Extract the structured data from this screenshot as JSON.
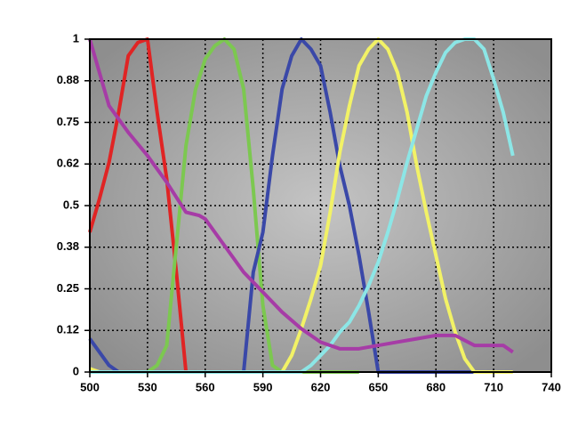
{
  "chart_data": {
    "type": "line",
    "xlim": [
      500,
      740
    ],
    "xticks": [
      500,
      530,
      560,
      590,
      620,
      650,
      680,
      710,
      740
    ],
    "ylim": [
      0,
      1
    ],
    "yticks": [
      0,
      {
        "value": 0.125,
        "label": "0.12"
      },
      0.25,
      {
        "value": 0.375,
        "label": "0.38"
      },
      0.5,
      {
        "value": 0.625,
        "label": "0.62"
      },
      0.75,
      {
        "value": 0.875,
        "label": "0.88"
      },
      1
    ],
    "grid": true,
    "series": [
      {
        "color": "#e02424",
        "x": [
          500,
          505,
          510,
          515,
          520,
          525,
          530,
          535,
          540,
          545,
          550
        ],
        "values": [
          0.42,
          0.52,
          0.63,
          0.78,
          0.95,
          0.99,
          1,
          0.78,
          0.58,
          0.3,
          0
        ]
      },
      {
        "color": "#7cc850",
        "x": [
          530,
          535,
          540,
          545,
          550,
          555,
          560,
          565,
          570,
          575,
          580,
          585,
          590,
          595,
          600,
          640
        ],
        "values": [
          0,
          0.02,
          0.08,
          0.38,
          0.68,
          0.85,
          0.94,
          0.98,
          1,
          0.97,
          0.85,
          0.55,
          0.2,
          0.02,
          0,
          0
        ]
      },
      {
        "color": "#3a48a8",
        "x": [
          500,
          505,
          510,
          515,
          520,
          580,
          585,
          590,
          595,
          600,
          605,
          610,
          615,
          620,
          625,
          630,
          635,
          640,
          645,
          650,
          700
        ],
        "values": [
          0.1,
          0.06,
          0.02,
          0,
          0,
          0,
          0.3,
          0.42,
          0.65,
          0.85,
          0.95,
          1,
          0.97,
          0.92,
          0.78,
          0.62,
          0.5,
          0.35,
          0.18,
          0,
          0
        ]
      },
      {
        "color": "#f2f266",
        "x": [
          500,
          505,
          600,
          605,
          610,
          615,
          620,
          625,
          630,
          635,
          640,
          645,
          650,
          655,
          660,
          665,
          670,
          675,
          680,
          685,
          690,
          695,
          700,
          720
        ],
        "values": [
          0.01,
          0,
          0,
          0.05,
          0.13,
          0.22,
          0.32,
          0.48,
          0.66,
          0.8,
          0.92,
          0.97,
          1,
          0.97,
          0.9,
          0.78,
          0.62,
          0.48,
          0.35,
          0.22,
          0.12,
          0.04,
          0,
          0
        ]
      },
      {
        "color": "#8ce6e6",
        "x": [
          500,
          610,
          615,
          620,
          625,
          630,
          635,
          640,
          645,
          650,
          655,
          660,
          665,
          670,
          675,
          680,
          685,
          690,
          695,
          700,
          705,
          710,
          715,
          720
        ],
        "values": [
          0,
          0,
          0.02,
          0.05,
          0.08,
          0.12,
          0.15,
          0.2,
          0.26,
          0.33,
          0.42,
          0.52,
          0.63,
          0.73,
          0.83,
          0.9,
          0.96,
          0.99,
          1,
          1,
          0.97,
          0.88,
          0.78,
          0.65
        ]
      },
      {
        "color": "#a63ca6",
        "x": [
          500,
          505,
          510,
          520,
          530,
          540,
          550,
          557,
          560,
          570,
          580,
          590,
          600,
          610,
          620,
          630,
          640,
          650,
          660,
          670,
          680,
          690,
          700,
          710,
          715,
          720
        ],
        "values": [
          1,
          0.9,
          0.8,
          0.72,
          0.65,
          0.57,
          0.48,
          0.47,
          0.46,
          0.38,
          0.3,
          0.24,
          0.18,
          0.13,
          0.09,
          0.07,
          0.07,
          0.08,
          0.09,
          0.1,
          0.11,
          0.11,
          0.08,
          0.08,
          0.08,
          0.06
        ]
      }
    ]
  }
}
